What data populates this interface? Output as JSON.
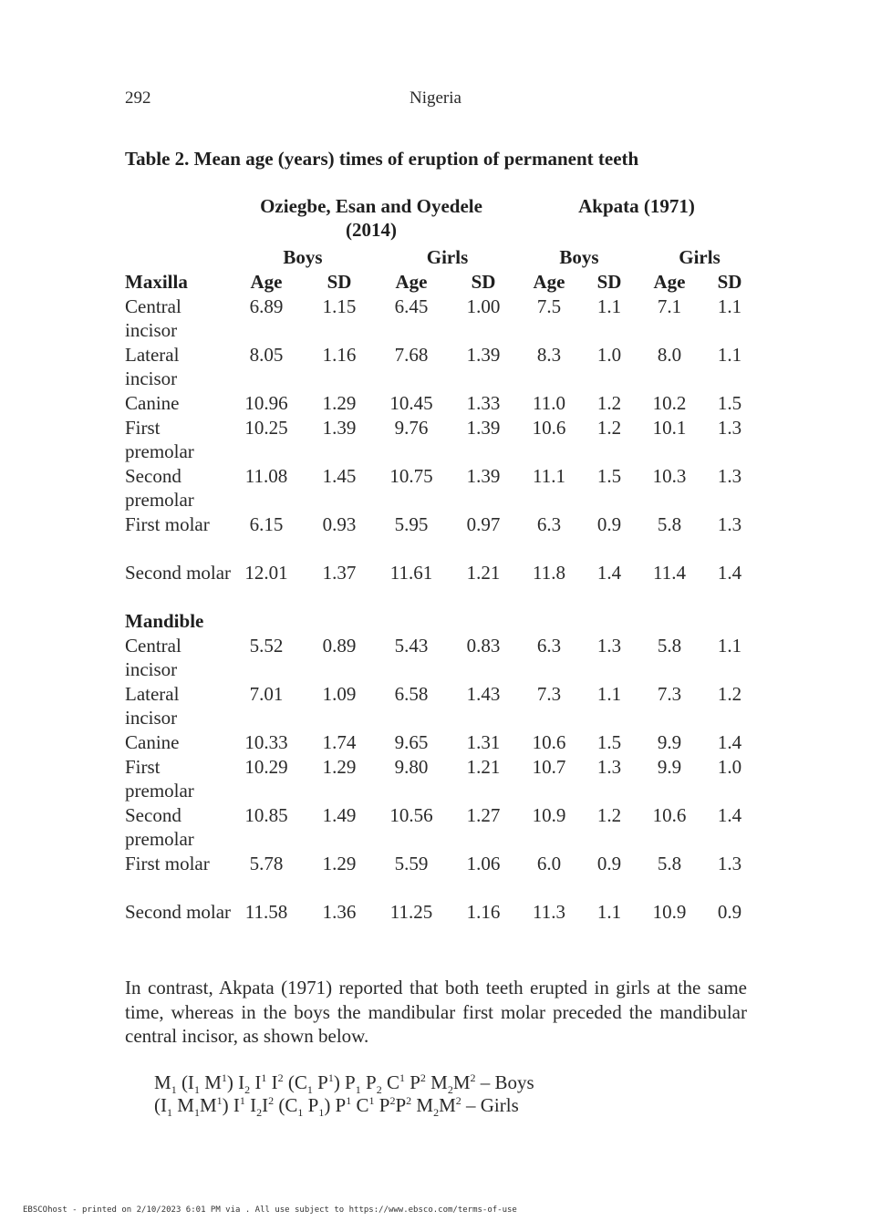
{
  "header": {
    "page_number": "292",
    "running_head": "Nigeria"
  },
  "table": {
    "title": "Table 2. Mean age (years) times of eruption of permanent teeth",
    "study_groups": [
      "Oziegbe, Esan and Oyedele (2014)",
      "Akpata (1971)"
    ],
    "sex_labels": [
      "Boys",
      "Girls",
      "Boys",
      "Girls"
    ],
    "column_headers": [
      "Maxilla",
      "Age",
      "SD",
      "Age",
      "SD",
      "Age",
      "SD",
      "Age",
      "SD"
    ],
    "maxilla": [
      {
        "tooth": "Central incisor",
        "values": [
          "6.89",
          "1.15",
          "6.45",
          "1.00",
          "7.5",
          "1.1",
          "7.1",
          "1.1"
        ]
      },
      {
        "tooth": "Lateral incisor",
        "values": [
          "8.05",
          "1.16",
          "7.68",
          "1.39",
          "8.3",
          "1.0",
          "8.0",
          "1.1"
        ]
      },
      {
        "tooth": "Canine",
        "values": [
          "10.96",
          "1.29",
          "10.45",
          "1.33",
          "11.0",
          "1.2",
          "10.2",
          "1.5"
        ]
      },
      {
        "tooth": "First premolar",
        "values": [
          "10.25",
          "1.39",
          "9.76",
          "1.39",
          "10.6",
          "1.2",
          "10.1",
          "1.3"
        ]
      },
      {
        "tooth": "Second premolar",
        "values": [
          "11.08",
          "1.45",
          "10.75",
          "1.39",
          "11.1",
          "1.5",
          "10.3",
          "1.3"
        ]
      },
      {
        "tooth": "First molar",
        "values": [
          "6.15",
          "0.93",
          "5.95",
          "0.97",
          "6.3",
          "0.9",
          "5.8",
          "1.3"
        ]
      },
      {
        "tooth": "Second molar",
        "values": [
          "12.01",
          "1.37",
          "11.61",
          "1.21",
          "11.8",
          "1.4",
          "11.4",
          "1.4"
        ]
      }
    ],
    "mandible_label": "Mandible",
    "mandible": [
      {
        "tooth": "Central incisor",
        "values": [
          "5.52",
          "0.89",
          "5.43",
          "0.83",
          "6.3",
          "1.3",
          "5.8",
          "1.1"
        ]
      },
      {
        "tooth": "Lateral incisor",
        "values": [
          "7.01",
          "1.09",
          "6.58",
          "1.43",
          "7.3",
          "1.1",
          "7.3",
          "1.2"
        ]
      },
      {
        "tooth": "Canine",
        "values": [
          "10.33",
          "1.74",
          "9.65",
          "1.31",
          "10.6",
          "1.5",
          "9.9",
          "1.4"
        ]
      },
      {
        "tooth": "First premolar",
        "values": [
          "10.29",
          "1.29",
          "9.80",
          "1.21",
          "10.7",
          "1.3",
          "9.9",
          "1.0"
        ]
      },
      {
        "tooth": "Second premolar",
        "values": [
          "10.85",
          "1.49",
          "10.56",
          "1.27",
          "10.9",
          "1.2",
          "10.6",
          "1.4"
        ]
      },
      {
        "tooth": "First molar",
        "values": [
          "5.78",
          "1.29",
          "5.59",
          "1.06",
          "6.0",
          "0.9",
          "5.8",
          "1.3"
        ]
      },
      {
        "tooth": "Second molar",
        "values": [
          "11.58",
          "1.36",
          "11.25",
          "1.16",
          "11.3",
          "1.1",
          "10.9",
          "0.9"
        ]
      }
    ]
  },
  "body": {
    "paragraph": "In contrast, Akpata (1971) reported that both teeth erupted in girls at the same time, whereas in the boys the mandibular first molar preceded the mandibular central incisor, as shown below.",
    "formulas": [
      {
        "tokens": [
          [
            "M"
          ],
          [
            "1",
            "sub"
          ],
          [
            " (I"
          ],
          [
            "1",
            "sub"
          ],
          [
            " M"
          ],
          [
            "1",
            "sup"
          ],
          [
            ") I"
          ],
          [
            "2",
            "sub"
          ],
          [
            " I"
          ],
          [
            "1",
            "sup"
          ],
          [
            " I"
          ],
          [
            "2",
            "sup"
          ],
          [
            " (C"
          ],
          [
            "1",
            "sub"
          ],
          [
            " P"
          ],
          [
            "1",
            "sup"
          ],
          [
            ") P"
          ],
          [
            "1",
            "sub"
          ],
          [
            " P"
          ],
          [
            "2",
            "sub"
          ],
          [
            " C"
          ],
          [
            "1",
            "sup"
          ],
          [
            " P"
          ],
          [
            "2",
            "sup"
          ],
          [
            " M"
          ],
          [
            "2",
            "sub"
          ],
          [
            "M"
          ],
          [
            "2",
            "sup"
          ],
          [
            " – Boys"
          ]
        ]
      },
      {
        "tokens": [
          [
            "(I"
          ],
          [
            "1",
            "sub"
          ],
          [
            " M"
          ],
          [
            "1",
            "sub"
          ],
          [
            "M"
          ],
          [
            "1",
            "sup"
          ],
          [
            ") I"
          ],
          [
            "1",
            "sup"
          ],
          [
            " I"
          ],
          [
            "2",
            "sub"
          ],
          [
            "I"
          ],
          [
            "2",
            "sup"
          ],
          [
            " (C"
          ],
          [
            "1",
            "sub"
          ],
          [
            " P"
          ],
          [
            "1",
            "sub"
          ],
          [
            ") P"
          ],
          [
            "1",
            "sup"
          ],
          [
            " C"
          ],
          [
            "1",
            "sup"
          ],
          [
            " P"
          ],
          [
            "2",
            "sup"
          ],
          [
            "P"
          ],
          [
            "2",
            "sup"
          ],
          [
            " M"
          ],
          [
            "2",
            "sub"
          ],
          [
            "M"
          ],
          [
            "2",
            "sup"
          ],
          [
            " – Girls"
          ]
        ]
      }
    ]
  },
  "footer": {
    "text": "EBSCOhost - printed on 2/10/2023 6:01 PM via . All use subject to https://www.ebsco.com/terms-of-use"
  }
}
